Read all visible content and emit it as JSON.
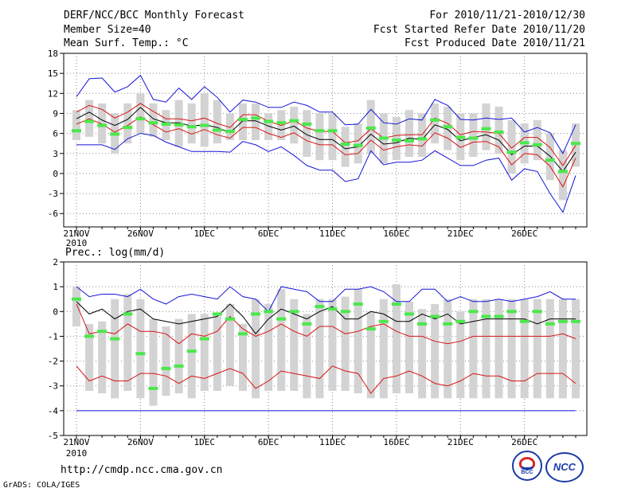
{
  "header": {
    "title": "DERF/NCC/BCC Monthly Forecast",
    "member_size": "Member Size=40",
    "variable": "Mean Surf. Temp.: °C",
    "period": "For 2010/11/21-2010/12/30",
    "started": "Fcst Started Refer Date 2010/11/20",
    "produced": "Fcst Produced Date 2010/11/21"
  },
  "footer": {
    "url": "http://cmdp.ncc.cma.gov.cn",
    "credit": "GrADS: COLA/IGES",
    "logo_bcc": "BCC",
    "logo_ncc": "NCC"
  },
  "colors": {
    "box": "#d3d3d3",
    "mean": "#4be84b",
    "extreme": "#1414d8",
    "spread": "#d81414",
    "median": "#000000",
    "grid": "#888888"
  },
  "chart_data": [
    {
      "type": "line",
      "title": "Mean Surf. Temp.: °C",
      "xlabel": "",
      "ylabel": "°C",
      "ylim": [
        -8,
        18
      ],
      "yticks": [
        -6,
        -3,
        0,
        3,
        6,
        9,
        12,
        15,
        18
      ],
      "x_tick_labels": [
        "21NOV\n2010",
        "26NOV",
        "1DEC",
        "6DEC",
        "11DEC",
        "16DEC",
        "21DEC",
        "26DEC"
      ],
      "x_tick_days": [
        1,
        6,
        11,
        16,
        21,
        26,
        31,
        36
      ],
      "grid": true,
      "days": 40,
      "series": [
        {
          "name": "max",
          "color": "#1414d8",
          "values": [
            11.5,
            14.2,
            14.3,
            12.2,
            13.0,
            14.7,
            11.1,
            10.7,
            12.8,
            11.1,
            13.0,
            11.4,
            9.2,
            11.0,
            10.7,
            9.9,
            9.9,
            10.7,
            10.2,
            9.2,
            9.2,
            7.3,
            7.4,
            9.6,
            7.6,
            7.4,
            8.2,
            8.0,
            11.1,
            10.2,
            8.1,
            8.0,
            8.3,
            8.1,
            8.3,
            6.2,
            6.9,
            6.1,
            3.0,
            7.3
          ]
        },
        {
          "name": "upper",
          "color": "#d81414",
          "values": [
            9.2,
            10.2,
            9.6,
            8.3,
            9.2,
            10.5,
            9.3,
            8.2,
            8.2,
            7.9,
            8.3,
            7.5,
            6.9,
            8.8,
            8.8,
            7.8,
            7.2,
            7.9,
            6.8,
            6.3,
            6.3,
            4.6,
            4.9,
            6.7,
            5.3,
            5.7,
            5.8,
            5.8,
            8.3,
            7.5,
            5.8,
            6.3,
            6.2,
            6.0,
            3.8,
            5.4,
            5.4,
            3.9,
            1.2,
            4.2
          ]
        },
        {
          "name": "median",
          "color": "#000000",
          "values": [
            8.2,
            9.2,
            8.0,
            7.2,
            8.1,
            9.9,
            8.2,
            7.6,
            7.6,
            7.1,
            7.3,
            6.9,
            6.1,
            7.9,
            7.9,
            7.1,
            6.5,
            7.1,
            5.8,
            5.1,
            5.1,
            3.7,
            4.0,
            5.9,
            4.4,
            4.6,
            5.3,
            5.1,
            7.3,
            6.6,
            4.9,
            5.4,
            5.8,
            5.0,
            2.8,
            4.1,
            4.1,
            2.6,
            0.3,
            3.2
          ]
        },
        {
          "name": "lower",
          "color": "#d81414",
          "values": [
            7.4,
            8.2,
            7.4,
            6.2,
            7.2,
            8.5,
            7.3,
            6.2,
            6.7,
            5.9,
            6.6,
            5.8,
            5.3,
            6.9,
            6.9,
            6.0,
            5.4,
            6.1,
            4.9,
            4.3,
            4.3,
            2.8,
            3.0,
            5.0,
            3.5,
            4.0,
            4.3,
            4.1,
            6.1,
            5.3,
            3.9,
            4.7,
            4.8,
            4.0,
            1.3,
            3.0,
            2.8,
            1.1,
            -2.0,
            2.3
          ]
        },
        {
          "name": "min",
          "color": "#1414d8",
          "values": [
            4.3,
            4.3,
            4.3,
            3.6,
            5.2,
            6.0,
            5.7,
            4.7,
            4.0,
            3.3,
            3.3,
            3.3,
            3.2,
            4.8,
            4.3,
            3.3,
            4.0,
            2.7,
            1.2,
            0.5,
            0.5,
            -1.2,
            -0.8,
            3.4,
            1.3,
            1.7,
            1.7,
            2.0,
            3.4,
            2.3,
            1.2,
            1.2,
            2.0,
            2.3,
            -1.0,
            0.7,
            0.3,
            -3.0,
            -5.8,
            -0.3
          ]
        },
        {
          "name": "mean",
          "color": "#4be84b",
          "values": [
            6.4,
            7.8,
            7.2,
            5.9,
            6.9,
            8.2,
            7.6,
            7.4,
            7.3,
            7.0,
            7.2,
            6.5,
            6.3,
            8.1,
            8.3,
            7.8,
            7.6,
            7.9,
            7.4,
            6.4,
            6.4,
            4.4,
            4.2,
            6.8,
            5.3,
            5.0,
            4.9,
            5.2,
            8.0,
            7.0,
            5.4,
            5.3,
            6.7,
            6.2,
            3.2,
            4.6,
            4.3,
            2.0,
            0.3,
            4.5
          ]
        },
        {
          "name": "box_top",
          "color": "#d3d3d3",
          "values": [
            9.5,
            11.0,
            10.5,
            9.0,
            10.5,
            12.0,
            10.5,
            9.5,
            11.0,
            10.5,
            12.0,
            11.0,
            9.0,
            10.5,
            10.5,
            9.0,
            9.5,
            10.0,
            9.5,
            9.0,
            9.0,
            7.0,
            7.5,
            11.0,
            9.0,
            8.5,
            9.5,
            9.0,
            10.5,
            10.0,
            9.0,
            9.0,
            10.5,
            10.0,
            8.0,
            7.5,
            8.0,
            6.0,
            3.5,
            7.5
          ]
        },
        {
          "name": "box_bottom",
          "color": "#d3d3d3",
          "values": [
            5.0,
            5.5,
            4.5,
            3.0,
            4.5,
            6.0,
            5.5,
            5.0,
            4.0,
            4.5,
            4.0,
            4.5,
            5.0,
            5.0,
            5.0,
            5.0,
            5.0,
            4.5,
            2.5,
            2.0,
            2.0,
            1.0,
            1.5,
            3.0,
            1.5,
            2.0,
            2.5,
            2.5,
            4.5,
            3.5,
            2.0,
            2.5,
            3.5,
            3.0,
            0.0,
            1.5,
            2.0,
            -1.0,
            -4.0,
            1.0
          ]
        }
      ]
    },
    {
      "type": "line",
      "title": "Prec.: log(mm/d)",
      "xlabel": "",
      "ylabel": "log(mm/d)",
      "ylim": [
        -5,
        2
      ],
      "yticks": [
        -5,
        -4,
        -3,
        -2,
        -1,
        0,
        1,
        2
      ],
      "x_tick_labels": [
        "21NOV\n2010",
        "26NOV",
        "1DEC",
        "6DEC",
        "11DEC",
        "16DEC",
        "21DEC",
        "26DEC"
      ],
      "x_tick_days": [
        1,
        6,
        11,
        16,
        21,
        26,
        31,
        36
      ],
      "grid": true,
      "days": 40,
      "floor": -4,
      "series": [
        {
          "name": "max",
          "color": "#1414d8",
          "values": [
            1.0,
            0.6,
            0.7,
            0.7,
            0.6,
            0.9,
            0.5,
            0.3,
            0.6,
            0.7,
            0.6,
            0.5,
            1.0,
            0.6,
            0.5,
            0.0,
            1.0,
            0.9,
            0.8,
            0.4,
            0.4,
            0.9,
            0.9,
            1.0,
            0.8,
            0.4,
            0.4,
            0.9,
            0.9,
            0.4,
            0.6,
            0.4,
            0.4,
            0.5,
            0.4,
            0.5,
            0.6,
            0.8,
            0.5,
            0.5
          ]
        },
        {
          "name": "median",
          "color": "#000000",
          "values": [
            0.4,
            -0.1,
            0.1,
            -0.3,
            0.0,
            0.1,
            -0.3,
            -0.4,
            -0.5,
            -0.4,
            -0.3,
            -0.2,
            0.3,
            -0.2,
            -0.9,
            -0.3,
            0.1,
            -0.1,
            -0.3,
            0.0,
            0.2,
            -0.3,
            -0.3,
            0.0,
            -0.1,
            -0.4,
            -0.4,
            -0.1,
            -0.3,
            -0.1,
            -0.5,
            -0.4,
            -0.3,
            -0.3,
            -0.3,
            -0.3,
            -0.5,
            -0.3,
            -0.3,
            -0.3
          ]
        },
        {
          "name": "upper",
          "color": "#d81414",
          "values": [
            0.3,
            -0.9,
            -0.8,
            -0.9,
            -0.5,
            -0.8,
            -0.8,
            -0.9,
            -1.3,
            -0.9,
            -1.0,
            -0.8,
            -0.2,
            -0.7,
            -1.0,
            -0.8,
            -0.5,
            -0.8,
            -1.0,
            -0.6,
            -0.6,
            -0.9,
            -0.8,
            -0.6,
            -0.5,
            -0.8,
            -1.0,
            -1.0,
            -1.2,
            -1.3,
            -1.2,
            -1.0,
            -1.0,
            -1.0,
            -1.0,
            -1.0,
            -1.0,
            -1.0,
            -0.9,
            -1.1
          ]
        },
        {
          "name": "lower",
          "color": "#d81414",
          "values": [
            -2.2,
            -2.8,
            -2.6,
            -2.8,
            -2.8,
            -2.5,
            -2.5,
            -2.6,
            -2.9,
            -2.6,
            -2.7,
            -2.5,
            -2.3,
            -2.5,
            -3.1,
            -2.8,
            -2.4,
            -2.5,
            -2.6,
            -2.7,
            -2.2,
            -2.4,
            -2.5,
            -3.3,
            -2.7,
            -2.6,
            -2.4,
            -2.6,
            -2.9,
            -3.0,
            -2.8,
            -2.5,
            -2.6,
            -2.6,
            -2.8,
            -2.8,
            -2.5,
            -2.5,
            -2.5,
            -2.9
          ]
        },
        {
          "name": "mean",
          "color": "#4be84b",
          "values": [
            0.5,
            -1.0,
            -0.8,
            -1.1,
            -0.1,
            -1.7,
            -3.1,
            -2.3,
            -2.2,
            -1.6,
            -1.1,
            -0.1,
            -0.3,
            -0.9,
            -0.1,
            0.0,
            -0.3,
            0.0,
            -0.5,
            0.2,
            0.1,
            0.0,
            0.3,
            -0.7,
            -0.4,
            0.3,
            -0.1,
            -0.5,
            -0.2,
            -0.5,
            -0.4,
            0.0,
            -0.2,
            -0.2,
            0.0,
            -0.4,
            0.0,
            -0.5,
            -0.4,
            -0.4
          ]
        },
        {
          "name": "box_top",
          "color": "#d3d3d3",
          "values": [
            1.0,
            -0.5,
            -0.4,
            0.5,
            0.7,
            0.5,
            -0.3,
            -0.6,
            -0.3,
            -0.1,
            -0.1,
            -0.1,
            0.3,
            -0.5,
            0.5,
            0.3,
            0.9,
            0.5,
            -0.1,
            0.5,
            0.5,
            0.6,
            0.9,
            0.0,
            0.5,
            1.1,
            0.4,
            0.1,
            0.3,
            0.5,
            0.0,
            0.5,
            0.5,
            0.5,
            0.5,
            0.5,
            0.5,
            0.5,
            0.5,
            0.5
          ]
        },
        {
          "name": "box_bottom",
          "color": "#d3d3d3",
          "values": [
            -0.6,
            -3.2,
            -3.3,
            -3.5,
            -3.2,
            -3.5,
            -3.8,
            -3.4,
            -3.3,
            -3.5,
            -3.2,
            -3.2,
            -3.0,
            -3.2,
            -3.5,
            -3.2,
            -3.2,
            -3.2,
            -3.5,
            -3.5,
            -3.2,
            -3.2,
            -3.3,
            -3.5,
            -3.5,
            -3.3,
            -3.3,
            -3.5,
            -3.5,
            -3.5,
            -3.5,
            -3.5,
            -3.5,
            -3.5,
            -3.5,
            -3.5,
            -3.5,
            -3.5,
            -3.5,
            -3.5
          ]
        }
      ]
    }
  ]
}
